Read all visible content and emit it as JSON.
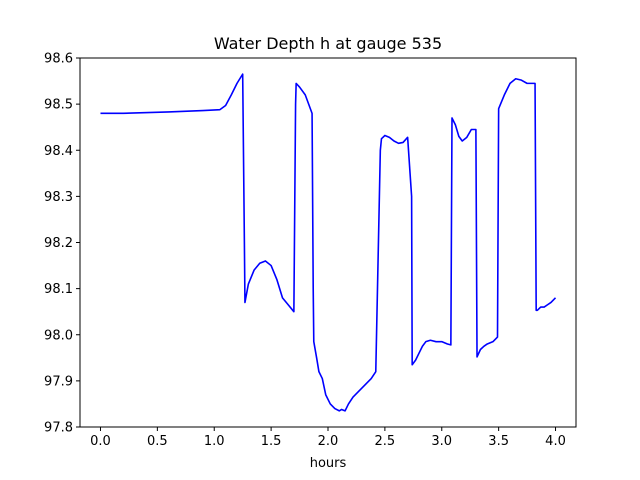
{
  "chart_data": {
    "type": "line",
    "title": "Water Depth h at gauge 535",
    "xlabel": "hours",
    "ylabel": "",
    "xlim": [
      -0.18,
      4.18
    ],
    "ylim": [
      97.8,
      98.6
    ],
    "x_ticks": [
      0.0,
      0.5,
      1.0,
      1.5,
      2.0,
      2.5,
      3.0,
      3.5,
      4.0
    ],
    "x_tick_labels": [
      "0.0",
      "0.5",
      "1.0",
      "1.5",
      "2.0",
      "2.5",
      "3.0",
      "3.5",
      "4.0"
    ],
    "y_ticks": [
      97.8,
      97.9,
      98.0,
      98.1,
      98.2,
      98.3,
      98.4,
      98.5,
      98.6
    ],
    "y_tick_labels": [
      "97.8",
      "97.9",
      "98.0",
      "98.1",
      "98.2",
      "98.3",
      "98.4",
      "98.5",
      "98.6"
    ],
    "grid": false,
    "legend": "none",
    "series": [
      {
        "color": "#0000ff",
        "x": [
          0.0,
          0.2,
          0.6,
          0.9,
          1.05,
          1.1,
          1.15,
          1.2,
          1.25,
          1.265,
          1.27,
          1.3,
          1.35,
          1.4,
          1.45,
          1.5,
          1.55,
          1.6,
          1.65,
          1.7,
          1.715,
          1.72,
          1.75,
          1.8,
          1.83,
          1.86,
          1.87,
          1.875,
          1.9,
          1.92,
          1.95,
          1.98,
          2.02,
          2.06,
          2.1,
          2.12,
          2.15,
          2.18,
          2.22,
          2.26,
          2.3,
          2.34,
          2.38,
          2.42,
          2.46,
          2.47,
          2.5,
          2.54,
          2.58,
          2.62,
          2.66,
          2.7,
          2.735,
          2.74,
          2.77,
          2.8,
          2.83,
          2.86,
          2.9,
          2.95,
          3.0,
          3.05,
          3.08,
          3.09,
          3.12,
          3.15,
          3.18,
          3.22,
          3.26,
          3.3,
          3.31,
          3.34,
          3.37,
          3.4,
          3.45,
          3.49,
          3.5,
          3.55,
          3.6,
          3.65,
          3.7,
          3.75,
          3.79,
          3.82,
          3.83,
          3.84,
          3.87,
          3.9,
          3.93,
          3.96,
          4.0
        ],
        "y": [
          98.48,
          98.48,
          98.483,
          98.486,
          98.488,
          98.497,
          98.52,
          98.545,
          98.565,
          98.2,
          98.07,
          98.11,
          98.14,
          98.155,
          98.16,
          98.15,
          98.12,
          98.08,
          98.065,
          98.05,
          98.5,
          98.545,
          98.537,
          98.52,
          98.5,
          98.48,
          98.1,
          97.985,
          97.95,
          97.92,
          97.905,
          97.87,
          97.85,
          97.84,
          97.835,
          97.838,
          97.835,
          97.85,
          97.865,
          97.875,
          97.885,
          97.895,
          97.905,
          97.92,
          98.4,
          98.425,
          98.432,
          98.428,
          98.42,
          98.415,
          98.417,
          98.428,
          98.3,
          97.935,
          97.945,
          97.96,
          97.975,
          97.985,
          97.988,
          97.985,
          97.985,
          97.98,
          97.978,
          98.47,
          98.455,
          98.43,
          98.42,
          98.428,
          98.445,
          98.445,
          97.952,
          97.968,
          97.975,
          97.98,
          97.985,
          97.995,
          98.49,
          98.52,
          98.545,
          98.555,
          98.552,
          98.545,
          98.545,
          98.545,
          98.053,
          98.053,
          98.06,
          98.06,
          98.065,
          98.07,
          98.08
        ]
      }
    ]
  }
}
